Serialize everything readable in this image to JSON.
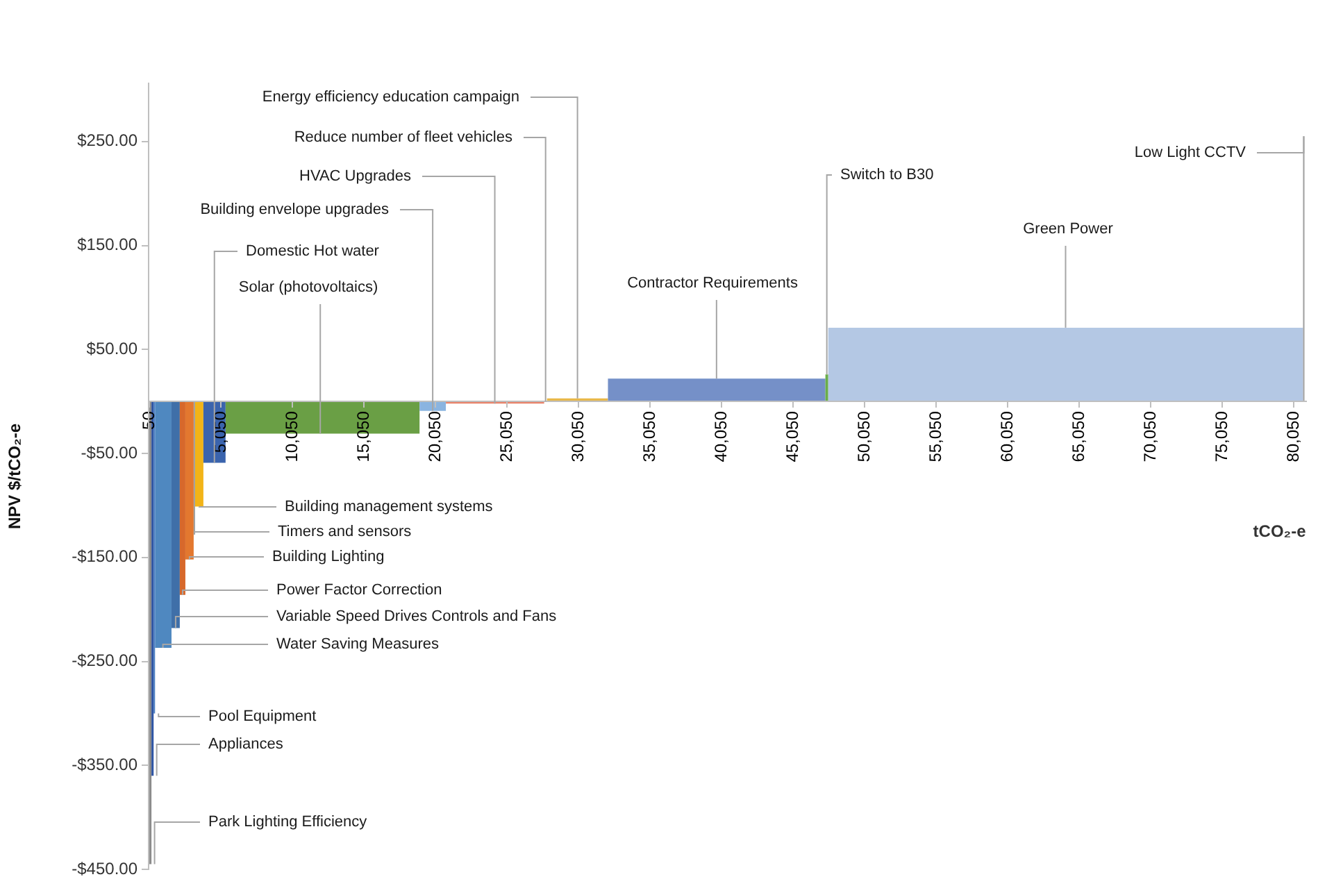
{
  "chart_data": {
    "type": "histogram",
    "bins": [
      50,
      200,
      350,
      450,
      1600,
      2180,
      2570,
      3150,
      3250,
      3830,
      5380,
      18940,
      20780,
      27650,
      27850,
      32110,
      47310,
      47510,
      80700,
      80800
    ],
    "values": [
      -445,
      -360,
      -300,
      -237,
      -218,
      -186,
      -152,
      -128,
      -101,
      -59,
      -31,
      -9,
      -2,
      null,
      3,
      22,
      26,
      71,
      255
    ],
    "colors": [
      "#8c8c8c",
      "#2e54a3",
      "#4a7cc0",
      "#4f88c0",
      "#3f6fa8",
      "#d7682b",
      "#e3782f",
      "#a0a0a0",
      "#f2b418",
      "#3b64ad",
      "#6a9f45",
      "#8ab4e0",
      "#e8836a",
      null,
      "#e8b84a",
      "#7590c8",
      "#6aae4a",
      "#b4c8e4",
      "#a0a0a0"
    ],
    "xlabel": "tCO₂-e",
    "ylabel": "NPV $/tCO₂-e",
    "xlim": [
      0,
      80900
    ],
    "xticks": [
      {
        "value": 50,
        "label": "50"
      },
      {
        "value": 5050,
        "label": "5,050"
      },
      {
        "value": 10050,
        "label": "10,050"
      },
      {
        "value": 15050,
        "label": "15,050"
      },
      {
        "value": 20050,
        "label": "20,050"
      },
      {
        "value": 25050,
        "label": "25,050"
      },
      {
        "value": 30050,
        "label": "30,050"
      },
      {
        "value": 35050,
        "label": "35,050"
      },
      {
        "value": 40050,
        "label": "40,050"
      },
      {
        "value": 45050,
        "label": "45,050"
      },
      {
        "value": 50050,
        "label": "50,050"
      },
      {
        "value": 55050,
        "label": "55,050"
      },
      {
        "value": 60050,
        "label": "60,050"
      },
      {
        "value": 65050,
        "label": "65,050"
      },
      {
        "value": 70050,
        "label": "70,050"
      },
      {
        "value": 75050,
        "label": "75,050"
      },
      {
        "value": 80050,
        "label": "80,050"
      }
    ],
    "ylim": [
      -450,
      306
    ],
    "yticks": [
      {
        "value": 250,
        "label": "$250.00"
      },
      {
        "value": 150,
        "label": "$150.00"
      },
      {
        "value": 50,
        "label": "$50.00"
      },
      {
        "value": -50,
        "label": "-$50.00"
      },
      {
        "value": -150,
        "label": "-$150.00"
      },
      {
        "value": -250,
        "label": "-$250.00"
      },
      {
        "value": -350,
        "label": "-$350.00"
      },
      {
        "value": -450,
        "label": "-$450.00"
      }
    ],
    "grid": false,
    "legend": false,
    "annotations": [
      {
        "text": "Park Lighting Efficiency",
        "x": 125,
        "y": -445
      },
      {
        "text": "Appliances",
        "x": 275,
        "y": -360
      },
      {
        "text": "Pool Equipment",
        "x": 400,
        "y": -300
      },
      {
        "text": "Water Saving Measures",
        "x": 1000,
        "y": -237
      },
      {
        "text": "Variable Speed Drives Controls and Fans",
        "x": 1890,
        "y": -218
      },
      {
        "text": "Power Factor Correction",
        "x": 2380,
        "y": -186
      },
      {
        "text": "Building Lighting",
        "x": 2860,
        "y": -152
      },
      {
        "text": "Timers and sensors",
        "x": 3200,
        "y": -128
      },
      {
        "text": "Building management systems",
        "x": 3540,
        "y": -101
      },
      {
        "text": "Domestic Hot water",
        "x": 4600,
        "y": -59
      },
      {
        "text": "Solar (photovoltaics)",
        "x": 12000,
        "y": -31
      },
      {
        "text": "Building envelope upgrades",
        "x": 19860,
        "y": -9
      },
      {
        "text": "HVAC Upgrades",
        "x": 24200,
        "y": -2
      },
      {
        "text": "Reduce number of fleet vehicles",
        "x": 27750,
        "y": 0
      },
      {
        "text": "Energy efficiency education campaign",
        "x": 29980,
        "y": 3
      },
      {
        "text": "Contractor Requirements",
        "x": 39700,
        "y": 22
      },
      {
        "text": "Switch to B30",
        "x": 47410,
        "y": 26
      },
      {
        "text": "Green Power",
        "x": 64100,
        "y": 71
      },
      {
        "text": "Low Light CCTV",
        "x": 80750,
        "y": 255
      }
    ]
  }
}
